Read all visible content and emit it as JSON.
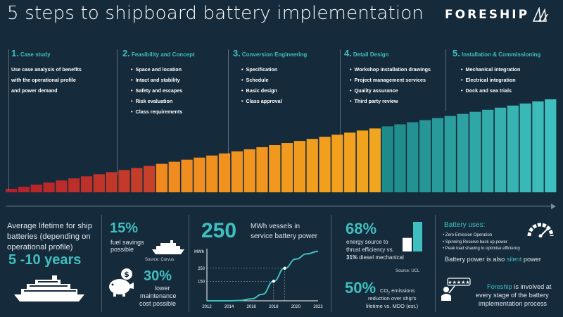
{
  "title": "5 steps to shipboard battery implementation",
  "logo": {
    "text": "FORESHIP"
  },
  "colors": {
    "background": "#152a3b",
    "teal": "#3fbfbf"
  },
  "bars": {
    "count": 44,
    "gradient": [
      "#b5202a",
      "#c6402a",
      "#f08a1f",
      "#f2a51e",
      "#1f8a8a",
      "#3fbfbf"
    ]
  },
  "steps": [
    {
      "num": "1.",
      "title": "Case study",
      "text": [
        "Use case analysis of benefits",
        "with the operational profile",
        "and power demand"
      ]
    },
    {
      "num": "2.",
      "title": "Feasibility and Concept",
      "items": [
        "Space and location",
        "Intact and stability",
        "Safety and escapes",
        "Risk evaluation",
        "Class requirements"
      ]
    },
    {
      "num": "3.",
      "title": "Conversion Engineering",
      "items": [
        "Specification",
        "Schedule",
        "Basic design",
        "Class approval"
      ]
    },
    {
      "num": "4.",
      "title": "Detail Design",
      "items": [
        "Workshop installation drawings",
        "Project management services",
        "Quality assurance",
        "Third party review"
      ]
    },
    {
      "num": "5.",
      "title": "Installation & Commissioning",
      "items": [
        "Mechanical integration",
        "Electrical integration",
        "Dock and sea trials"
      ]
    }
  ],
  "lifetime": {
    "text": "Average lifetime for ship batteries (depending on operational profile)",
    "value": "5 -10 years"
  },
  "fuel": {
    "value": "15%",
    "label_1": "fuel savings",
    "label_2": "possible",
    "source": "Source: Corvus"
  },
  "maintenance": {
    "value": "30%",
    "label_1": "lower",
    "label_2": "maintenance",
    "label_3": "cost possible"
  },
  "vessels": {
    "value": "250",
    "label_1": "MWh vessels in",
    "label_2": "service battery power"
  },
  "chart_data": {
    "type": "line",
    "ylabel": "MWh",
    "x_ticks": [
      "2012",
      "2014",
      "2016",
      "2018",
      "2020",
      "2022"
    ],
    "y_ticks": [
      "250",
      "150"
    ],
    "x": [
      2012,
      2014,
      2015,
      2016,
      2017,
      2018,
      2019,
      2020,
      2021,
      2022
    ],
    "y": [
      0,
      0,
      3,
      15,
      50,
      150,
      250,
      320,
      360,
      380
    ],
    "ylim": [
      0,
      400
    ],
    "xlim": [
      2012,
      2022
    ]
  },
  "energy": {
    "value": "68%",
    "line_1": "energy source to",
    "line_2": "thrust efficiency vs.",
    "line_3a": "31%",
    "line_3b": " diesel mechanical",
    "source": "Source: UCL",
    "bar_fraction_large": 1.0,
    "bar_fraction_small": 0.46
  },
  "co2": {
    "value": "50%",
    "line_1a": "CO",
    "line_1sub": "2",
    "line_1b": " emissions",
    "line_2": "reduction over ship's",
    "line_3": "lifetime vs. MDO (est.)"
  },
  "uses": {
    "title": "Battery uses:",
    "items": [
      "Zero Emission Operation",
      "Spinning Reserve back up power",
      "Peak load shaving to optimise efficiency"
    ]
  },
  "silent": {
    "prefix": "Battery power is also ",
    "highlight": "silent",
    "suffix": " power"
  },
  "involved": {
    "brand": "Foreship",
    "line_1": " is involved at",
    "line_2": "every stage of the battery",
    "line_3": "implementation process"
  }
}
